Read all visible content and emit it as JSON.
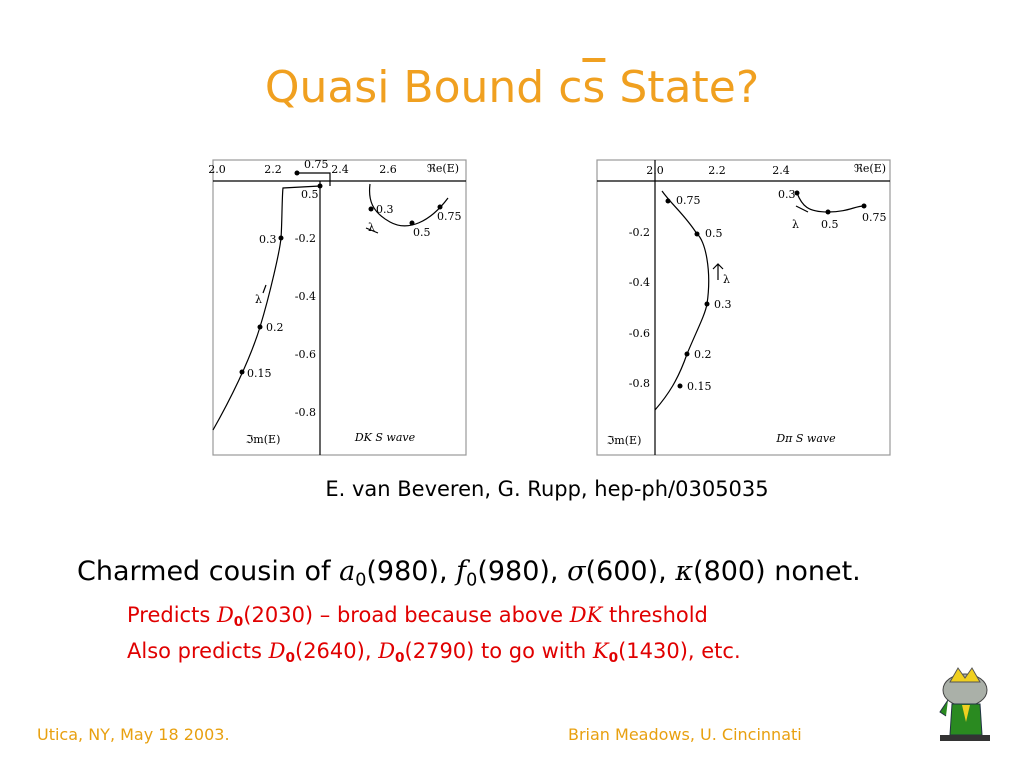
{
  "title": {
    "before": "Quasi Bound c",
    "bar": "s",
    "after": " State?"
  },
  "figures": [
    {
      "x_axis_label": "ℜe(E)",
      "y_axis_label": "ℑm(E)",
      "wave_label": "DK  S wave",
      "lambda": [
        "λ",
        "λ"
      ],
      "xticks": [
        "2.0",
        "2.2",
        "2.4",
        "2.6"
      ],
      "yticks": [
        "-0.2",
        "-0.4",
        "-0.6",
        "-0.8"
      ],
      "point_labels": [
        "0.75",
        "0.5",
        "0.3",
        "0.2",
        "0.15",
        "0.3",
        "0.5",
        "0.75"
      ]
    },
    {
      "x_axis_label": "ℜe(E)",
      "y_axis_label": "ℑm(E)",
      "wave_label": "Dπ  S wave",
      "lambda": [
        "λ",
        "λ"
      ],
      "xticks": [
        "2.0",
        "2.2",
        "2.4"
      ],
      "yticks": [
        "-0.2",
        "-0.4",
        "-0.6",
        "-0.8"
      ],
      "point_labels": [
        "0.75",
        "0.5",
        "0.3",
        "0.2",
        "0.15",
        "0.3",
        "0.5",
        "0.75"
      ]
    }
  ],
  "citation": "E. van Beveren, G. Rupp, hep-ph/0305035",
  "main_line": [
    "Charmed cousin of ",
    "a",
    "0",
    "(980), ",
    "f",
    "0",
    "(980), ",
    "σ",
    "(600), ",
    "κ",
    "(800) nonet."
  ],
  "sub_lines": [
    [
      "Predicts ",
      "D",
      "0",
      "(2030) – broad because above ",
      "DK",
      " threshold"
    ],
    [
      "Also predicts ",
      "D",
      "0",
      "(2640), ",
      "D",
      "0",
      "(2790) to go with ",
      "K",
      "0",
      "(1430), etc."
    ]
  ],
  "footer": {
    "left": "Utica, NY, May 18 2003.",
    "right": "Brian Meadows, U. Cincinnati"
  }
}
